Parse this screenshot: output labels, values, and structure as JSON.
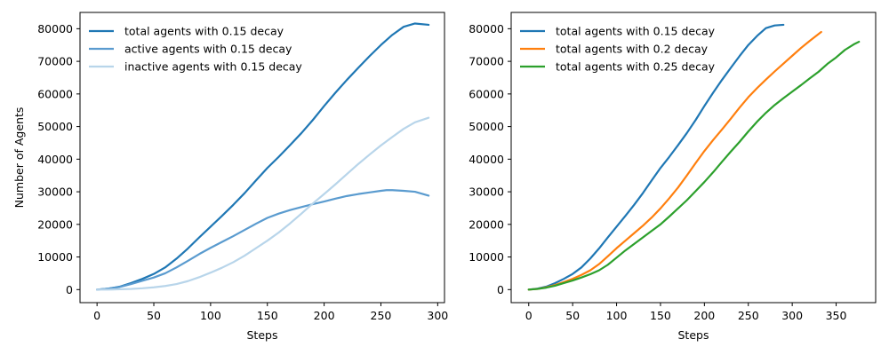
{
  "chart_data": [
    {
      "type": "line",
      "xlabel": "Steps",
      "ylabel": "Number of Agents",
      "xlim": [
        -15,
        306
      ],
      "ylim": [
        -4000,
        85000
      ],
      "xticks": [
        0,
        50,
        100,
        150,
        200,
        250,
        300
      ],
      "yticks": [
        0,
        10000,
        20000,
        30000,
        40000,
        50000,
        60000,
        70000,
        80000
      ],
      "grid": false,
      "legend": "top-left",
      "series": [
        {
          "name": "total agents with 0.15 decay",
          "color": "#1f77b4",
          "x": [
            0,
            10,
            20,
            30,
            40,
            50,
            60,
            70,
            80,
            90,
            100,
            110,
            120,
            130,
            140,
            150,
            160,
            170,
            180,
            190,
            200,
            210,
            220,
            230,
            240,
            250,
            260,
            270,
            280,
            292
          ],
          "y": [
            0,
            300,
            900,
            2000,
            3300,
            4800,
            6800,
            9500,
            12600,
            16000,
            19300,
            22600,
            26000,
            29600,
            33500,
            37300,
            40700,
            44300,
            48000,
            52000,
            56300,
            60400,
            64300,
            68000,
            71600,
            75000,
            78100,
            80600,
            81600,
            81200
          ]
        },
        {
          "name": "active agents with 0.15 decay",
          "color": "#5a9bcf",
          "x": [
            0,
            10,
            20,
            30,
            40,
            50,
            60,
            70,
            80,
            90,
            100,
            110,
            120,
            130,
            140,
            150,
            160,
            170,
            180,
            190,
            200,
            210,
            220,
            230,
            240,
            250,
            255,
            260,
            270,
            280,
            292
          ],
          "y": [
            0,
            300,
            800,
            1700,
            2700,
            3700,
            5000,
            6800,
            8800,
            10900,
            12800,
            14600,
            16400,
            18300,
            20200,
            22000,
            23300,
            24400,
            25300,
            26200,
            27000,
            27900,
            28700,
            29300,
            29800,
            30300,
            30500,
            30500,
            30300,
            30000,
            28800
          ]
        },
        {
          "name": "inactive agents with 0.15 decay",
          "color": "#b8d5ea",
          "x": [
            0,
            10,
            20,
            30,
            40,
            50,
            60,
            70,
            80,
            90,
            100,
            110,
            120,
            130,
            140,
            150,
            160,
            170,
            180,
            190,
            200,
            210,
            220,
            230,
            240,
            250,
            260,
            270,
            280,
            292
          ],
          "y": [
            0,
            0,
            100,
            200,
            400,
            700,
            1100,
            1700,
            2600,
            3800,
            5200,
            6700,
            8400,
            10400,
            12700,
            15000,
            17500,
            20300,
            23300,
            26400,
            29300,
            32300,
            35400,
            38500,
            41400,
            44200,
            46800,
            49300,
            51300,
            52700
          ]
        }
      ]
    },
    {
      "type": "line",
      "xlabel": "Steps",
      "ylabel": "",
      "xlim": [
        -20,
        395
      ],
      "ylim": [
        -4000,
        85000
      ],
      "xticks": [
        0,
        50,
        100,
        150,
        200,
        250,
        300,
        350
      ],
      "yticks": [
        0,
        10000,
        20000,
        30000,
        40000,
        50000,
        60000,
        70000,
        80000
      ],
      "grid": false,
      "legend": "top-left",
      "series": [
        {
          "name": "total agents with 0.15 decay",
          "color": "#1f77b4",
          "x": [
            0,
            10,
            20,
            30,
            40,
            50,
            60,
            70,
            80,
            90,
            100,
            110,
            120,
            130,
            140,
            150,
            160,
            170,
            180,
            190,
            200,
            210,
            220,
            230,
            240,
            250,
            260,
            270,
            280,
            290
          ],
          "y": [
            0,
            300,
            900,
            2000,
            3300,
            4800,
            6800,
            9500,
            12600,
            16000,
            19300,
            22600,
            26000,
            29600,
            33500,
            37300,
            40700,
            44300,
            48000,
            52000,
            56300,
            60400,
            64300,
            68000,
            71600,
            75000,
            77800,
            80200,
            81000,
            81200
          ]
        },
        {
          "name": "total agents with 0.2 decay",
          "color": "#ff7f0e",
          "x": [
            0,
            10,
            20,
            30,
            40,
            50,
            60,
            70,
            80,
            90,
            100,
            110,
            120,
            130,
            140,
            150,
            160,
            170,
            180,
            190,
            200,
            210,
            220,
            230,
            240,
            250,
            260,
            270,
            280,
            290,
            300,
            310,
            320,
            333
          ],
          "y": [
            0,
            200,
            700,
            1400,
            2300,
            3300,
            4500,
            5900,
            7800,
            10200,
            12700,
            15000,
            17300,
            19600,
            22100,
            24900,
            28000,
            31300,
            35000,
            38800,
            42500,
            45900,
            49100,
            52400,
            55800,
            59000,
            61800,
            64400,
            66900,
            69300,
            71700,
            74100,
            76300,
            79000
          ]
        },
        {
          "name": "total agents with 0.25 decay",
          "color": "#2ca02c",
          "x": [
            0,
            10,
            20,
            30,
            40,
            50,
            60,
            70,
            80,
            90,
            100,
            110,
            120,
            130,
            140,
            150,
            160,
            170,
            180,
            190,
            200,
            210,
            220,
            230,
            240,
            250,
            260,
            270,
            280,
            290,
            300,
            310,
            320,
            330,
            340,
            350,
            360,
            370,
            376
          ],
          "y": [
            0,
            200,
            600,
            1200,
            2000,
            2800,
            3700,
            4700,
            5900,
            7600,
            9800,
            12000,
            14000,
            16000,
            18000,
            20000,
            22400,
            24900,
            27400,
            30200,
            33000,
            36000,
            39200,
            42300,
            45300,
            48500,
            51500,
            54200,
            56600,
            58700,
            60700,
            62700,
            64800,
            66800,
            69200,
            71200,
            73500,
            75200,
            76000
          ]
        }
      ]
    }
  ]
}
